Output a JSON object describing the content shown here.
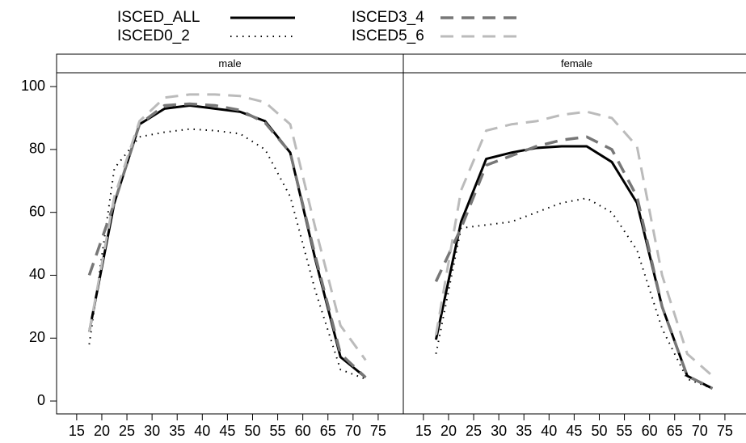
{
  "chart_data": [
    {
      "type": "line",
      "title": "male",
      "x": [
        17.5,
        22.5,
        27.5,
        32.5,
        37.5,
        42.5,
        47.5,
        52.5,
        57.5,
        62.5,
        67.5,
        72.5
      ],
      "xlim": [
        11,
        80
      ],
      "xticks": [
        15,
        20,
        25,
        30,
        35,
        40,
        45,
        50,
        55,
        60,
        65,
        70,
        75
      ],
      "ylim": [
        -4.1,
        104.4
      ],
      "yticks": [
        0,
        20,
        40,
        60,
        80,
        100
      ],
      "series": [
        {
          "name": "ISCED_ALL",
          "color": "#000000",
          "dash": "solid",
          "values": [
            22,
            63,
            88,
            93,
            94,
            93,
            92,
            89,
            79,
            45,
            14,
            7.5
          ]
        },
        {
          "name": "ISCED0_2",
          "color": "#000000",
          "dash": "dotted",
          "values": [
            18,
            74,
            84,
            85.5,
            86.5,
            86,
            85,
            80,
            65,
            35,
            10,
            7
          ]
        },
        {
          "name": "ISCED3_4",
          "color": "#777777",
          "dash": "dashed",
          "values": [
            40,
            63,
            88,
            94,
            94.5,
            94,
            92.5,
            88.5,
            79,
            46,
            15,
            7.5
          ]
        },
        {
          "name": "ISCED5_6",
          "color": "#bbbbbb",
          "dash": "dashed",
          "values": [
            22,
            65,
            89,
            96.5,
            97.5,
            97.5,
            97,
            95,
            88,
            55,
            24,
            13
          ]
        }
      ]
    },
    {
      "type": "line",
      "title": "female",
      "x": [
        17.5,
        22.5,
        27.5,
        32.5,
        37.5,
        42.5,
        47.5,
        52.5,
        57.5,
        62.5,
        67.5,
        72.5
      ],
      "xlim": [
        11,
        80
      ],
      "xticks": [
        15,
        20,
        25,
        30,
        35,
        40,
        45,
        50,
        55,
        60,
        65,
        70,
        75
      ],
      "ylim": [
        -4.1,
        104.4
      ],
      "series": [
        {
          "color": "#000000",
          "dash": "solid",
          "values": [
            19.5,
            57,
            77,
            79,
            80.5,
            81,
            81,
            76,
            63,
            30,
            8,
            4
          ]
        },
        {
          "color": "#000000",
          "dash": "dotted",
          "values": [
            15,
            55,
            56,
            57,
            60,
            63,
            64.5,
            60,
            48,
            23,
            7,
            4
          ]
        },
        {
          "color": "#777777",
          "dash": "dashed",
          "values": [
            38,
            55,
            75,
            78,
            81,
            83,
            84,
            80,
            65,
            30,
            8,
            4
          ]
        },
        {
          "color": "#bbbbbb",
          "dash": "dashed",
          "values": [
            21,
            67,
            86,
            88,
            89,
            91,
            92,
            90,
            81,
            40,
            15,
            8
          ]
        }
      ]
    }
  ]
}
